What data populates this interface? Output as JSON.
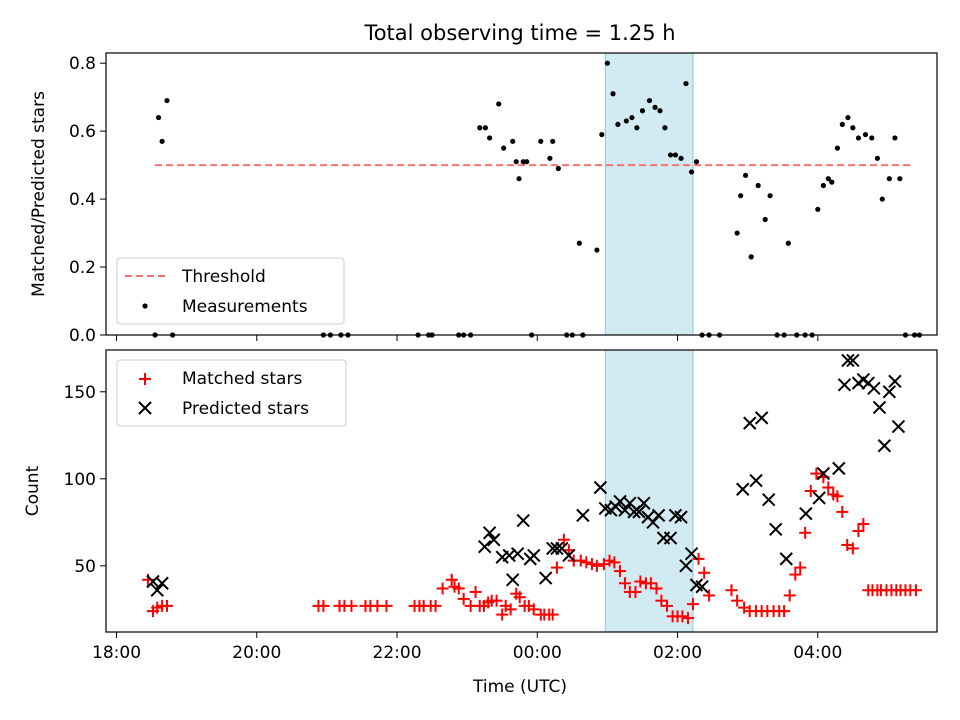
{
  "chart_data": {
    "title": "Total observing time = 1.25 h",
    "x_axis": {
      "label": "Time (UTC)",
      "range_hours_from_00": [
        -6.15,
        5.7
      ],
      "ticks": [
        {
          "value": -6,
          "label": "18:00"
        },
        {
          "value": -4,
          "label": "20:00"
        },
        {
          "value": -2,
          "label": "22:00"
        },
        {
          "value": 0,
          "label": "00:00"
        },
        {
          "value": 2,
          "label": "02:00"
        },
        {
          "value": 4,
          "label": "04:00"
        }
      ]
    },
    "shaded_interval": {
      "start": 0.97,
      "end": 2.22,
      "color": "#add8e6"
    },
    "panels": [
      {
        "type": "scatter",
        "ylabel": "Matched/Predicted stars",
        "ylim": [
          0,
          0.83
        ],
        "yticks": [
          {
            "value": 0,
            "label": "0.0"
          },
          {
            "value": 0.2,
            "label": "0.2"
          },
          {
            "value": 0.4,
            "label": "0.4"
          },
          {
            "value": 0.6,
            "label": "0.6"
          },
          {
            "value": 0.8,
            "label": "0.8"
          }
        ],
        "legend_position": "lower-left",
        "series": [
          {
            "name": "Threshold",
            "kind": "dashed-line",
            "color": "#ff7070",
            "x": [
              -5.45,
              5.35
            ],
            "y": [
              0.5,
              0.5
            ]
          },
          {
            "name": "Measurements",
            "kind": "dots",
            "color": "#000000",
            "x": [
              -5.45,
              -5.4,
              -5.35,
              -5.28,
              -5.2,
              -3.05,
              -2.95,
              -2.8,
              -2.7,
              -1.7,
              -1.55,
              -1.5,
              -1.12,
              -1.05,
              -0.95,
              -0.82,
              -0.74,
              -0.68,
              -0.55,
              -0.48,
              -0.35,
              -0.3,
              -0.26,
              -0.2,
              -0.15,
              -0.08,
              0.05,
              0.18,
              0.22,
              0.3,
              0.42,
              0.5,
              0.6,
              0.65,
              0.85,
              0.92,
              1.0,
              1.08,
              1.15,
              1.27,
              1.35,
              1.42,
              1.5,
              1.6,
              1.68,
              1.75,
              1.82,
              1.9,
              1.97,
              2.05,
              2.12,
              2.2,
              2.27,
              2.35,
              2.45,
              2.6,
              2.85,
              2.9,
              2.97,
              3.05,
              3.15,
              3.25,
              3.32,
              3.42,
              3.52,
              3.58,
              3.7,
              3.82,
              3.92,
              4.0,
              4.08,
              4.15,
              4.2,
              4.28,
              4.35,
              4.43,
              4.5,
              4.58,
              4.68,
              4.77,
              4.85,
              4.92,
              5.02,
              5.1,
              5.17,
              5.25,
              5.38,
              5.45
            ],
            "y": [
              0.0,
              0.64,
              0.57,
              0.69,
              0.0,
              0.0,
              0.0,
              0.0,
              0.0,
              0.0,
              0.0,
              0.0,
              0.0,
              0.0,
              0.0,
              0.61,
              0.61,
              0.58,
              0.68,
              0.55,
              0.57,
              0.51,
              0.46,
              0.51,
              0.51,
              0.0,
              0.57,
              0.52,
              0.57,
              0.49,
              0.0,
              0.0,
              0.27,
              0.0,
              0.25,
              0.59,
              0.8,
              0.71,
              0.62,
              0.63,
              0.64,
              0.61,
              0.66,
              0.69,
              0.67,
              0.66,
              0.61,
              0.53,
              0.53,
              0.52,
              0.74,
              0.48,
              0.51,
              0.0,
              0.0,
              0.0,
              0.3,
              0.41,
              0.47,
              0.23,
              0.44,
              0.34,
              0.41,
              0.0,
              0.0,
              0.27,
              0.0,
              0.0,
              0.0,
              0.37,
              0.44,
              0.46,
              0.45,
              0.55,
              0.62,
              0.64,
              0.61,
              0.58,
              0.59,
              0.58,
              0.52,
              0.4,
              0.46,
              0.58,
              0.46,
              0.0,
              0.0,
              0.0
            ]
          }
        ]
      },
      {
        "type": "scatter",
        "ylabel": "Count",
        "ylim": [
          12,
          174
        ],
        "yticks": [
          {
            "value": 50,
            "label": "50"
          },
          {
            "value": 100,
            "label": "100"
          },
          {
            "value": 150,
            "label": "150"
          }
        ],
        "legend_position": "upper-left",
        "series": [
          {
            "name": "Matched stars",
            "kind": "plus",
            "color": "#ff0000",
            "x": [
              -5.55,
              -5.48,
              -5.42,
              -5.35,
              -5.28,
              -3.12,
              -3.05,
              -2.82,
              -2.75,
              -2.65,
              -2.45,
              -2.38,
              -2.28,
              -2.15,
              -1.75,
              -1.68,
              -1.62,
              -1.52,
              -1.45,
              -1.35,
              -1.22,
              -1.18,
              -1.12,
              -1.05,
              -0.95,
              -0.88,
              -0.82,
              -0.76,
              -0.7,
              -0.65,
              -0.58,
              -0.5,
              -0.45,
              -0.38,
              -0.3,
              -0.25,
              -0.18,
              -0.12,
              -0.05,
              0.05,
              0.1,
              0.17,
              0.22,
              0.28,
              0.38,
              0.45,
              0.52,
              0.62,
              0.7,
              0.78,
              0.85,
              0.95,
              1.03,
              1.1,
              1.18,
              1.25,
              1.32,
              1.4,
              1.47,
              1.55,
              1.62,
              1.7,
              1.77,
              1.85,
              1.93,
              2.0,
              2.07,
              2.15,
              2.22,
              2.3,
              2.38,
              2.45,
              2.77,
              2.85,
              2.95,
              3.03,
              3.12,
              3.2,
              3.28,
              3.37,
              3.45,
              3.52,
              3.6,
              3.68,
              3.75,
              3.82,
              3.9,
              3.98,
              4.08,
              4.15,
              4.22,
              4.28,
              4.35,
              4.42,
              4.5,
              4.58,
              4.65,
              4.72,
              4.78,
              4.85,
              4.9,
              4.98,
              5.05,
              5.12,
              5.18,
              5.25,
              5.32,
              5.4
            ],
            "y": [
              42,
              24,
              26,
              27,
              27,
              27,
              27,
              27,
              27,
              27,
              27,
              27,
              27,
              27,
              27,
              27,
              27,
              27,
              27,
              37,
              42,
              38,
              37,
              31,
              27,
              35,
              27,
              27,
              29,
              30,
              30,
              22,
              27,
              25,
              34,
              32,
              27,
              27,
              25,
              22,
              22,
              22,
              22,
              49,
              65,
              59,
              53,
              53,
              52,
              51,
              50,
              51,
              53,
              52,
              47,
              40,
              35,
              35,
              41,
              40,
              40,
              37,
              30,
              27,
              21,
              21,
              21,
              20,
              28,
              54,
              46,
              33,
              36,
              30,
              26,
              24,
              24,
              24,
              24,
              24,
              24,
              24,
              33,
              45,
              49,
              69,
              93,
              103,
              101,
              95,
              91,
              90,
              81,
              62,
              60,
              70,
              74,
              36,
              36,
              36,
              36,
              36,
              36,
              36,
              36,
              36,
              36,
              36
            ],
            "_note": "",
            "_omit": true
          },
          {
            "name": "Predicted stars",
            "kind": "cross",
            "color": "#000000",
            "x": [
              -5.48,
              -5.42,
              -5.35,
              -0.75,
              -0.68,
              -0.62,
              -0.5,
              -0.4,
              -0.35,
              -0.28,
              -0.2,
              -0.1,
              -0.05,
              0.12,
              0.22,
              0.28,
              0.35,
              0.45,
              0.65,
              0.9,
              0.97,
              1.05,
              1.12,
              1.18,
              1.25,
              1.32,
              1.38,
              1.45,
              1.52,
              1.58,
              1.65,
              1.73,
              1.8,
              1.9,
              1.97,
              2.05,
              2.12,
              2.2,
              2.27,
              2.35,
              2.93,
              3.03,
              3.12,
              3.2,
              3.3,
              3.4,
              3.55,
              3.83,
              4.02,
              4.08,
              4.3,
              4.38,
              4.43,
              4.5,
              4.58,
              4.65,
              4.72,
              4.8,
              4.88,
              4.95,
              5.02,
              5.1,
              5.15
            ],
            "y": [
              41,
              36,
              40,
              61,
              69,
              65,
              55,
              56,
              42,
              57,
              76,
              54,
              56,
              43,
              60,
              60,
              60,
              56,
              79,
              95,
              83,
              82,
              84,
              87,
              82,
              86,
              81,
              81,
              86,
              78,
              75,
              79,
              66,
              66,
              79,
              78,
              50,
              57,
              39,
              38,
              94,
              132,
              99,
              135,
              88,
              71,
              54,
              80,
              89,
              103,
              106,
              154,
              168,
              168,
              155,
              157,
              155,
              152,
              141,
              119,
              150,
              156,
              130
            ],
            "_omit": true
          }
        ]
      }
    ]
  }
}
